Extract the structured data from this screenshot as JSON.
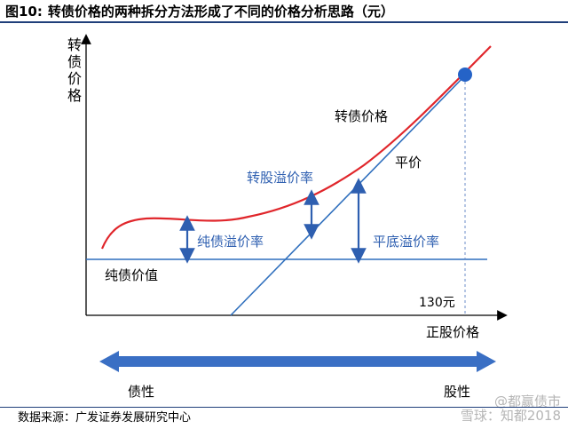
{
  "title": {
    "figure_no": "图10:",
    "text": "转债价格的两种拆分方法形成了不同的价格分析思路（元）"
  },
  "labels": {
    "y_axis": "转债价格",
    "x_axis": "正股价格",
    "convertible_price": "转债价格",
    "parity": "平价",
    "conversion_premium": "转股溢价率",
    "pure_bond_premium": "纯债溢价率",
    "parity_premium": "平底溢价率",
    "pure_bond_value": "纯债价值",
    "strike_marker": "130元",
    "bond_nature": "债性",
    "equity_nature": "股性"
  },
  "source": "数据来源：广发证券发展研究中心",
  "watermark": {
    "line1": "@都赢债市",
    "line2": "雪球：知都2018"
  },
  "colors": {
    "curve": "#e0262b",
    "parity_line": "#2f6fbd",
    "bond_line": "#2f6fbd",
    "axis": "#000000",
    "arrow": "#2e5fb0",
    "text_blue": "#2e5fb0",
    "marker": "#2563c7"
  }
}
